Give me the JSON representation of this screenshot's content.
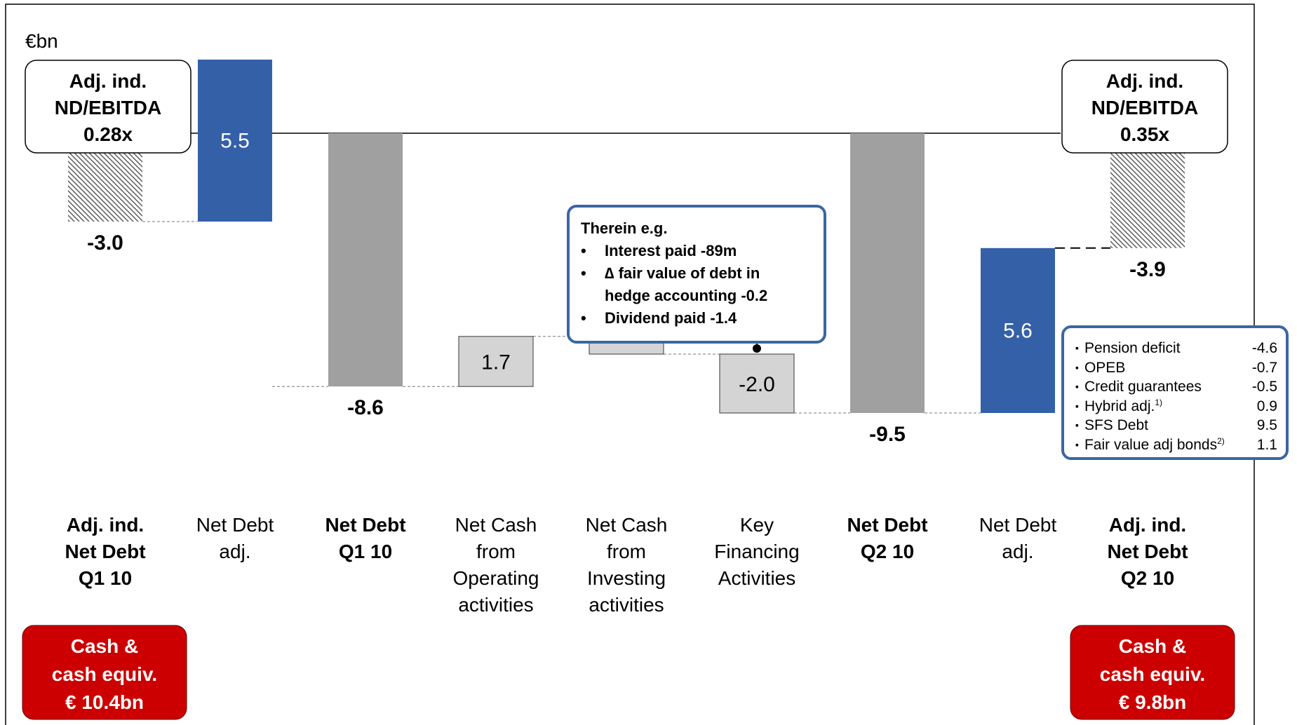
{
  "chart_data": {
    "type": "waterfall",
    "unit_label": "€bn",
    "bars": [
      {
        "label": "Adj. ind. Net Debt Q1 10",
        "value": -3.0,
        "value_text": "-3.0",
        "kind": "adj-total",
        "base": 0
      },
      {
        "label": "Net Debt adj.",
        "value": 5.5,
        "value_text": "5.5",
        "kind": "adjustment",
        "base": -3.0
      },
      {
        "label": "Net Debt Q1 10",
        "value": -8.6,
        "value_text": "-8.6",
        "kind": "total",
        "base": 0
      },
      {
        "label": "Net Cash from Operating activities",
        "value": 1.7,
        "value_text": "1.7",
        "kind": "delta",
        "base": -8.6
      },
      {
        "label": "Net Cash from Investing activities",
        "value": -0.6,
        "value_text": "-0.6",
        "kind": "delta",
        "base": -6.9
      },
      {
        "label": "Key Financing Activities",
        "value": -2.0,
        "value_text": "-2.0",
        "kind": "delta",
        "base": -7.5
      },
      {
        "label": "Net Debt Q2 10",
        "value": -9.5,
        "value_text": "-9.5",
        "kind": "total",
        "base": 0
      },
      {
        "label": "Net Debt adj.",
        "value": 5.6,
        "value_text": "5.6",
        "kind": "adjustment",
        "base": -9.5
      },
      {
        "label": "Adj. ind. Net Debt Q2 10",
        "value": -3.9,
        "value_text": "-3.9",
        "kind": "adj-total",
        "base": 0
      }
    ],
    "category_labels": [
      {
        "lines": [
          "Adj. ind.",
          "Net Debt",
          "Q1 10"
        ],
        "bold": true
      },
      {
        "lines": [
          "Net Debt",
          "adj."
        ],
        "bold": false
      },
      {
        "lines": [
          "Net Debt",
          "Q1 10"
        ],
        "bold": true
      },
      {
        "lines": [
          "Net Cash",
          "from",
          "Operating",
          "activities"
        ],
        "bold": false
      },
      {
        "lines": [
          "Net Cash",
          "from",
          "Investing",
          "activities"
        ],
        "bold": false
      },
      {
        "lines": [
          "Key",
          "Financing",
          "Activities"
        ],
        "bold": false
      },
      {
        "lines": [
          "Net Debt",
          "Q2 10"
        ],
        "bold": true
      },
      {
        "lines": [
          "Net Debt",
          "adj."
        ],
        "bold": false
      },
      {
        "lines": [
          "Adj. ind.",
          "Net Debt",
          "Q2 10"
        ],
        "bold": true
      }
    ],
    "ratio_boxes": [
      {
        "lines": [
          "Adj. ind.",
          "ND/EBITDA",
          "0.28x"
        ]
      },
      {
        "lines": [
          "Adj. ind.",
          "ND/EBITDA",
          "0.35x"
        ]
      }
    ],
    "cash_boxes": [
      {
        "lines": [
          "Cash &",
          "cash equiv.",
          "€ 10.4bn"
        ]
      },
      {
        "lines": [
          "Cash &",
          "cash equiv.",
          "€ 9.8bn"
        ]
      }
    ],
    "callout_therein": {
      "title": "Therein e.g.",
      "items": [
        {
          "bullet": "•",
          "lines": [
            "Interest paid -89m"
          ]
        },
        {
          "bullet": "•",
          "lines": [
            "∆ fair value of debt in",
            "hedge accounting -0.2"
          ]
        },
        {
          "bullet": "•",
          "lines": [
            "Dividend paid -1.4"
          ]
        }
      ]
    },
    "callout_components": [
      {
        "label": "Pension deficit",
        "sup": "",
        "value": "-4.6"
      },
      {
        "label": "OPEB",
        "sup": "",
        "value": "-0.7"
      },
      {
        "label": "Credit guarantees",
        "sup": "",
        "value": "-0.5"
      },
      {
        "label": "Hybrid adj.",
        "sup": "1)",
        "value": "0.9"
      },
      {
        "label": "SFS Debt",
        "sup": "",
        "value": "9.5"
      },
      {
        "label": "Fair value adj bonds",
        "sup": "2)",
        "value": "1.1"
      }
    ],
    "colors": {
      "blue": "#3460a8",
      "dark_grey": "#a0a0a0",
      "light_grey": "#d4d4d4",
      "red": "#cc0000",
      "callout_border": "#3b66a3",
      "frame": "#000000"
    }
  }
}
